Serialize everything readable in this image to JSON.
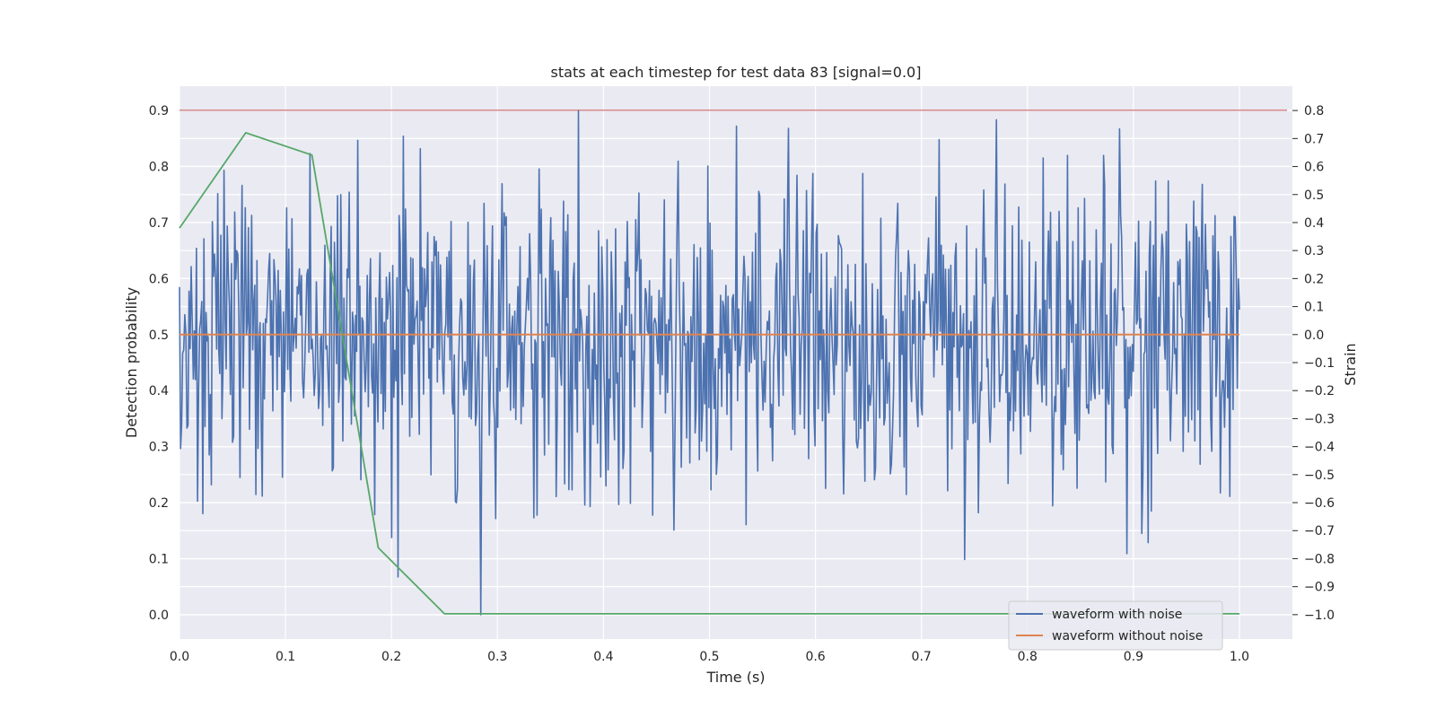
{
  "chart_data": {
    "type": "line",
    "title": "stats at each timestep for test data 83 [signal=0.0]",
    "xlabel": "Time (s)",
    "ylabel": "Detection probability",
    "y2label": "Strain",
    "xlim": [
      0.0,
      1.05
    ],
    "ylim": [
      -0.043,
      0.943
    ],
    "y2lim": [
      -1.087,
      0.887
    ],
    "xticks": [
      "0.0",
      "0.1",
      "0.2",
      "0.3",
      "0.4",
      "0.5",
      "0.6",
      "0.7",
      "0.8",
      "0.9",
      "1.0"
    ],
    "yticks": [
      "0.0",
      "0.1",
      "0.2",
      "0.3",
      "0.4",
      "0.5",
      "0.6",
      "0.7",
      "0.8",
      "0.9"
    ],
    "y2ticks": [
      "−1.0",
      "−0.9",
      "−0.8",
      "−0.7",
      "−0.6",
      "−0.5",
      "−0.4",
      "−0.3",
      "−0.2",
      "−0.1",
      "0.0",
      "0.1",
      "0.2",
      "0.3",
      "0.4",
      "0.5",
      "0.6",
      "0.7",
      "0.8"
    ],
    "grid": true,
    "legend_position": "lower-right",
    "colors": {
      "noisy": "#4c72b0",
      "clean": "#dd8452",
      "probability": "#55a868",
      "threshold": "#c44e52",
      "background": "#eaeaf2"
    },
    "series": [
      {
        "name": "waveform with noise",
        "axis": "right",
        "noise_summary": {
          "n_points": 1000,
          "x_start": 0.0,
          "x_end": 1.0,
          "mean": 0.0,
          "approx_std": 0.28,
          "min": -1.0,
          "max": 0.8,
          "min_at": 0.284,
          "max_at": 0.376
        }
      },
      {
        "name": "waveform without noise",
        "axis": "right",
        "x": [
          0.0,
          1.0
        ],
        "y": [
          0.0,
          0.0
        ]
      },
      {
        "axis": "left",
        "x": [
          0.0,
          0.0625,
          0.125,
          0.1875,
          0.25,
          0.3125,
          0.375,
          0.4375,
          0.5,
          0.5625,
          0.625,
          0.6875,
          0.75,
          0.8125,
          0.875,
          0.9375,
          1.0
        ],
        "y": [
          0.69,
          0.86,
          0.82,
          0.12,
          0.002,
          0.002,
          0.002,
          0.002,
          0.002,
          0.002,
          0.002,
          0.002,
          0.002,
          0.002,
          0.002,
          0.002,
          0.002
        ]
      },
      {
        "axis": "left",
        "x": [
          0.0,
          1.045
        ],
        "y": [
          0.9,
          0.9
        ]
      }
    ]
  }
}
